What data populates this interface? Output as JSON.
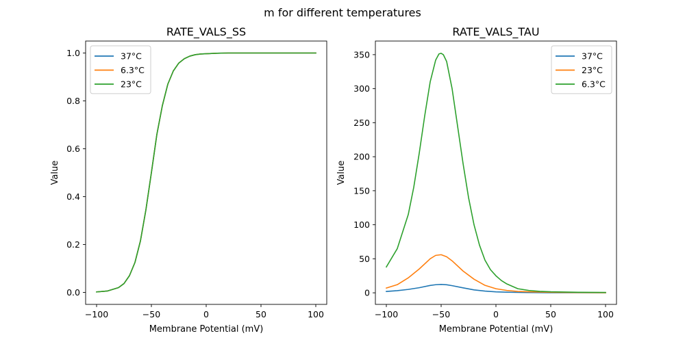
{
  "figure": {
    "suptitle": "m for different temperatures"
  },
  "colors": {
    "blue": "#1f77b4",
    "orange": "#ff7f0e",
    "green": "#2ca02c"
  },
  "chart_data": [
    {
      "type": "line",
      "title": "RATE_VALS_SS",
      "xlabel": "Membrane Potential (mV)",
      "ylabel": "Value",
      "xlim": [
        -110,
        110
      ],
      "ylim": [
        -0.05,
        1.05
      ],
      "xticks": [
        -100,
        -50,
        0,
        50,
        100
      ],
      "yticks": [
        0.0,
        0.2,
        0.4,
        0.6,
        0.8,
        1.0
      ],
      "ytick_labels": [
        "0.0",
        "0.2",
        "0.4",
        "0.6",
        "0.8",
        "1.0"
      ],
      "legend_position": "upper-left",
      "series": [
        {
          "name": "37°C",
          "color": "#1f77b4",
          "x": [
            -100,
            -90,
            -80,
            -75,
            -70,
            -65,
            -60,
            -55,
            -50,
            -45,
            -40,
            -35,
            -30,
            -25,
            -20,
            -15,
            -10,
            -5,
            0,
            10,
            20,
            40,
            60,
            80,
            100
          ],
          "y": [
            0.002,
            0.006,
            0.02,
            0.037,
            0.07,
            0.125,
            0.215,
            0.345,
            0.5,
            0.66,
            0.78,
            0.87,
            0.925,
            0.958,
            0.976,
            0.987,
            0.993,
            0.996,
            0.997,
            0.999,
            1.0,
            1.0,
            1.0,
            1.0,
            1.0
          ]
        },
        {
          "name": "6.3°C",
          "color": "#ff7f0e",
          "x": [
            -100,
            -90,
            -80,
            -75,
            -70,
            -65,
            -60,
            -55,
            -50,
            -45,
            -40,
            -35,
            -30,
            -25,
            -20,
            -15,
            -10,
            -5,
            0,
            10,
            20,
            40,
            60,
            80,
            100
          ],
          "y": [
            0.002,
            0.006,
            0.02,
            0.037,
            0.07,
            0.125,
            0.215,
            0.345,
            0.5,
            0.66,
            0.78,
            0.87,
            0.925,
            0.958,
            0.976,
            0.987,
            0.993,
            0.996,
            0.997,
            0.999,
            1.0,
            1.0,
            1.0,
            1.0,
            1.0
          ]
        },
        {
          "name": "23°C",
          "color": "#2ca02c",
          "x": [
            -100,
            -90,
            -80,
            -75,
            -70,
            -65,
            -60,
            -55,
            -50,
            -45,
            -40,
            -35,
            -30,
            -25,
            -20,
            -15,
            -10,
            -5,
            0,
            10,
            20,
            40,
            60,
            80,
            100
          ],
          "y": [
            0.002,
            0.006,
            0.02,
            0.037,
            0.07,
            0.125,
            0.215,
            0.345,
            0.5,
            0.66,
            0.78,
            0.87,
            0.925,
            0.958,
            0.976,
            0.987,
            0.993,
            0.996,
            0.997,
            0.999,
            1.0,
            1.0,
            1.0,
            1.0,
            1.0
          ]
        }
      ]
    },
    {
      "type": "line",
      "title": "RATE_VALS_TAU",
      "xlabel": "Membrane Potential (mV)",
      "ylabel": "Value",
      "xlim": [
        -110,
        110
      ],
      "ylim": [
        -17,
        370
      ],
      "xticks": [
        -100,
        -50,
        0,
        50,
        100
      ],
      "yticks": [
        0,
        50,
        100,
        150,
        200,
        250,
        300,
        350
      ],
      "ytick_labels": [
        "0",
        "50",
        "100",
        "150",
        "200",
        "250",
        "300",
        "350"
      ],
      "legend_position": "upper-right",
      "series": [
        {
          "name": "37°C",
          "color": "#1f77b4",
          "x": [
            -100,
            -90,
            -80,
            -70,
            -60,
            -55,
            -50,
            -45,
            -40,
            -30,
            -20,
            -10,
            0,
            10,
            20,
            30,
            50,
            75,
            100
          ],
          "y": [
            2.0,
            3.2,
            5.0,
            7.5,
            10.8,
            11.9,
            12.3,
            11.8,
            10.5,
            7.3,
            4.3,
            2.5,
            1.4,
            0.9,
            0.6,
            0.4,
            0.2,
            0.1,
            0.1
          ]
        },
        {
          "name": "23°C",
          "color": "#ff7f0e",
          "x": [
            -100,
            -90,
            -80,
            -70,
            -60,
            -55,
            -50,
            -45,
            -40,
            -30,
            -20,
            -10,
            0,
            10,
            20,
            30,
            50,
            75,
            100
          ],
          "y": [
            7.0,
            12.0,
            22.0,
            35.0,
            50.0,
            55.0,
            56.0,
            53.0,
            47.0,
            32.0,
            20.0,
            11.0,
            6.0,
            3.5,
            2.0,
            1.5,
            0.8,
            0.4,
            0.2
          ]
        },
        {
          "name": "6.3°C",
          "color": "#2ca02c",
          "x": [
            -100,
            -90,
            -80,
            -75,
            -70,
            -65,
            -60,
            -55,
            -52,
            -50,
            -48,
            -45,
            -40,
            -35,
            -30,
            -25,
            -20,
            -15,
            -10,
            -5,
            0,
            5,
            10,
            20,
            30,
            40,
            50,
            75,
            100
          ],
          "y": [
            38,
            65,
            115,
            155,
            205,
            260,
            310,
            342,
            351,
            352,
            350,
            340,
            300,
            245,
            190,
            140,
            100,
            70,
            48,
            34,
            25,
            18,
            13,
            6,
            3.5,
            2.2,
            1.5,
            0.8,
            0.5
          ]
        }
      ]
    }
  ]
}
